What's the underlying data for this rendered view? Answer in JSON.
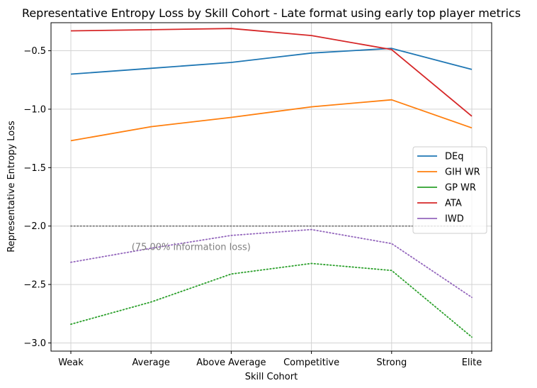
{
  "chart_data": {
    "type": "line",
    "title": "Representative Entropy Loss by Skill Cohort - Late format using early top player metrics",
    "xlabel": "Skill Cohort",
    "ylabel": "Representative Entropy Loss",
    "categories": [
      "Weak",
      "Average",
      "Above Average",
      "Competitive",
      "Strong",
      "Elite"
    ],
    "ylim": [
      -3.07,
      -0.26
    ],
    "yticks": [
      -3.0,
      -2.5,
      -2.0,
      -1.5,
      -1.0,
      -0.5
    ],
    "ytick_labels": [
      "−3.0",
      "−2.5",
      "−2.0",
      "−1.5",
      "−1.0",
      "−0.5"
    ],
    "grid": true,
    "legend_position": "center-right",
    "series": [
      {
        "name": "DEq",
        "color": "#1f77b4",
        "style": "solid",
        "values": [
          -0.7,
          -0.65,
          -0.6,
          -0.52,
          -0.48,
          -0.66
        ]
      },
      {
        "name": "GIH WR",
        "color": "#ff7f0e",
        "style": "solid",
        "values": [
          -1.27,
          -1.15,
          -1.07,
          -0.98,
          -0.92,
          -1.16
        ]
      },
      {
        "name": "GP WR",
        "color": "#2ca02c",
        "style": "dotted",
        "values": [
          -2.84,
          -2.65,
          -2.41,
          -2.32,
          -2.38,
          -2.95
        ]
      },
      {
        "name": "ATA",
        "color": "#d62728",
        "style": "solid",
        "values": [
          -0.33,
          -0.32,
          -0.31,
          -0.37,
          -0.49,
          -1.06
        ]
      },
      {
        "name": "IWD",
        "color": "#9467bd",
        "style": "dotted",
        "values": [
          -2.31,
          -2.19,
          -2.08,
          -2.03,
          -2.15,
          -2.61
        ]
      }
    ],
    "reference_line": {
      "value": -2.0,
      "color": "#808080",
      "style": "dotted"
    },
    "annotation": {
      "text": "(75.00% information loss)",
      "x": 1.5,
      "y": -2.18,
      "color": "#808080"
    }
  }
}
